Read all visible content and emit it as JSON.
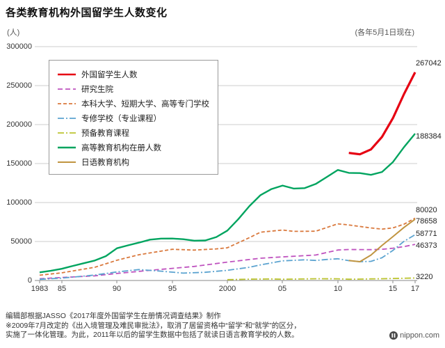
{
  "header": {
    "title": "各类教育机构外国留学生人数变化",
    "unit_label": "(人)",
    "date_note": "(各年5月1日现在)"
  },
  "footer": {
    "line1": "编辑部根据JASSO《2017年度外国留生在册情况调查结果》制作",
    "line1_fixed": "编辑部根据JASSO《2017年度外国留学生在册情况调查结果》制作",
    "line2": "※2009年7月改定的《出入境管理及难民审批法》，取消了居留资格中“留学”和“就学”的区分，",
    "line3": "实施了一体化管理。为此，2011年以后的留学生数据中包括了就读日语言教育学校的人数。",
    "brand": "nippon.com"
  },
  "chart_data": {
    "type": "line",
    "title": "各类教育机构外国留学生人数变化",
    "ylabel": "(人)",
    "xlabel": "",
    "note": "(各年5月1日现在)",
    "xlim": [
      1983,
      2017
    ],
    "ylim": [
      0,
      300000
    ],
    "grid": "horizontal",
    "legend_position": "top-left-box",
    "y_ticks": [
      "300000",
      "250000",
      "200000",
      "150000",
      "100000",
      "50000",
      "0"
    ],
    "x_ticks": [
      "1983",
      "85",
      "90",
      "95",
      "2000",
      "05",
      "10",
      "15",
      "17"
    ],
    "series": [
      {
        "key": "foreign-students-total",
        "name": "外国留学生人数",
        "color": "#e60012",
        "width": 3.2,
        "dash": "",
        "end_label": "267042",
        "points": [
          [
            2011,
            163697
          ],
          [
            2012,
            161848
          ],
          [
            2013,
            168145
          ],
          [
            2014,
            184155
          ],
          [
            2015,
            208379
          ],
          [
            2016,
            239287
          ],
          [
            2017,
            267042
          ]
        ]
      },
      {
        "key": "graduate-school",
        "name": "研究生院",
        "color": "#bf53bf",
        "width": 1.8,
        "dash": "7 4",
        "end_label": "46373",
        "points": [
          [
            1983,
            2200
          ],
          [
            1985,
            3800
          ],
          [
            1988,
            6000
          ],
          [
            1990,
            9000
          ],
          [
            1993,
            13000
          ],
          [
            1995,
            15500
          ],
          [
            1997,
            18000
          ],
          [
            2000,
            23585
          ],
          [
            2003,
            28542
          ],
          [
            2005,
            30278
          ],
          [
            2008,
            32666
          ],
          [
            2010,
            39097
          ],
          [
            2011,
            39749
          ],
          [
            2012,
            39641
          ],
          [
            2013,
            39567
          ],
          [
            2014,
            39979
          ],
          [
            2015,
            41396
          ],
          [
            2016,
            43478
          ],
          [
            2017,
            46373
          ]
        ]
      },
      {
        "key": "undergraduate-juniorcollege-kosen",
        "name": "本科大学、短期大学、高等专门学校",
        "color": "#d9783c",
        "width": 1.8,
        "dash": "5 3",
        "end_label": "80020",
        "points": [
          [
            1983,
            6800
          ],
          [
            1985,
            9800
          ],
          [
            1988,
            17000
          ],
          [
            1990,
            26000
          ],
          [
            1992,
            33000
          ],
          [
            1995,
            40000
          ],
          [
            1997,
            39000
          ],
          [
            1999,
            40500
          ],
          [
            2000,
            42000
          ],
          [
            2002,
            55000
          ],
          [
            2003,
            62000
          ],
          [
            2005,
            64774
          ],
          [
            2006,
            63000
          ],
          [
            2008,
            63175
          ],
          [
            2010,
            72665
          ],
          [
            2011,
            71244
          ],
          [
            2012,
            69274
          ],
          [
            2013,
            67437
          ],
          [
            2014,
            65865
          ],
          [
            2015,
            67472
          ],
          [
            2016,
            72229
          ],
          [
            2017,
            80020
          ]
        ]
      },
      {
        "key": "specialized-training-college",
        "name": "专修学校（专业课程）",
        "color": "#5ba3d0",
        "width": 1.8,
        "dash": "9 3 2 3",
        "end_label": "58771",
        "points": [
          [
            1983,
            1500
          ],
          [
            1985,
            3000
          ],
          [
            1988,
            7000
          ],
          [
            1990,
            11000
          ],
          [
            1992,
            14000
          ],
          [
            1994,
            12000
          ],
          [
            1996,
            9500
          ],
          [
            1998,
            10500
          ],
          [
            2000,
            13000
          ],
          [
            2002,
            17000
          ],
          [
            2003,
            20000
          ],
          [
            2005,
            25197
          ],
          [
            2007,
            26500
          ],
          [
            2008,
            25753
          ],
          [
            2009,
            27000
          ],
          [
            2010,
            27872
          ],
          [
            2011,
            25463
          ],
          [
            2012,
            24092
          ],
          [
            2013,
            24586
          ],
          [
            2014,
            29227
          ],
          [
            2015,
            38654
          ],
          [
            2016,
            50235
          ],
          [
            2017,
            58771
          ]
        ]
      },
      {
        "key": "preparatory-course",
        "name": "预备教育课程",
        "color": "#bcc430",
        "width": 1.8,
        "dash": "9 3 2 3",
        "end_label": "3220",
        "points": [
          [
            2000,
            1100
          ],
          [
            2002,
            1700
          ],
          [
            2004,
            2000
          ],
          [
            2005,
            1563
          ],
          [
            2006,
            1800
          ],
          [
            2008,
            2235
          ],
          [
            2010,
            2140
          ],
          [
            2011,
            1619
          ],
          [
            2012,
            1804
          ],
          [
            2013,
            2027
          ],
          [
            2014,
            2197
          ],
          [
            2015,
            2607
          ],
          [
            2016,
            2873
          ],
          [
            2017,
            3220
          ]
        ]
      },
      {
        "key": "higher-education-enrolled",
        "name": "高等教育机构在册人数",
        "color": "#00a45f",
        "width": 2.4,
        "dash": "",
        "end_label": "188384",
        "points": [
          [
            1983,
            10428
          ],
          [
            1984,
            12410
          ],
          [
            1985,
            15009
          ],
          [
            1986,
            18631
          ],
          [
            1987,
            22154
          ],
          [
            1988,
            25643
          ],
          [
            1989,
            31251
          ],
          [
            1990,
            41347
          ],
          [
            1991,
            45066
          ],
          [
            1992,
            48561
          ],
          [
            1993,
            52405
          ],
          [
            1994,
            53787
          ],
          [
            1995,
            53847
          ],
          [
            1996,
            52921
          ],
          [
            1997,
            51047
          ],
          [
            1998,
            51298
          ],
          [
            1999,
            55755
          ],
          [
            2000,
            64011
          ],
          [
            2001,
            78812
          ],
          [
            2002,
            95550
          ],
          [
            2003,
            109508
          ],
          [
            2004,
            117302
          ],
          [
            2005,
            121812
          ],
          [
            2006,
            117927
          ],
          [
            2007,
            118498
          ],
          [
            2008,
            123829
          ],
          [
            2009,
            132720
          ],
          [
            2010,
            141774
          ],
          [
            2011,
            138075
          ],
          [
            2012,
            137756
          ],
          [
            2013,
            135519
          ],
          [
            2014,
            139185
          ],
          [
            2015,
            152062
          ],
          [
            2016,
            171122
          ],
          [
            2017,
            188384
          ]
        ]
      },
      {
        "key": "japanese-language-institute",
        "name": "日语教育机构",
        "color": "#c09440",
        "width": 2.0,
        "dash": "",
        "end_label": "78658",
        "points": [
          [
            2011,
            25622
          ],
          [
            2012,
            24092
          ],
          [
            2013,
            32626
          ],
          [
            2014,
            44970
          ],
          [
            2015,
            56317
          ],
          [
            2016,
            68165
          ],
          [
            2017,
            78658
          ]
        ]
      }
    ]
  }
}
